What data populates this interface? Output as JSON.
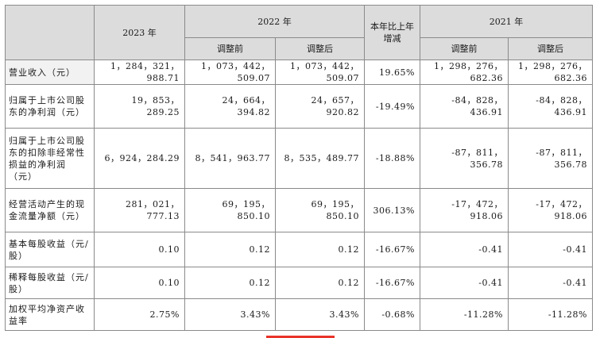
{
  "header": {
    "col_2023": "2023 年",
    "col_2022": "2022 年",
    "col_change": "本年比上年增减",
    "col_2021": "2021 年",
    "sub_before": "调整前",
    "sub_after": "调整后"
  },
  "rows": [
    {
      "label": "营业收入（元）",
      "v2023": "1，284，321，988.71",
      "v2022_before": "1，073，442，509.07",
      "v2022_after": "1，073，442，509.07",
      "change": "19.65%",
      "v2021_before": "1，298，276，682.36",
      "v2021_after": "1，298，276，682.36"
    },
    {
      "label": "归属于上市公司股东的净利润（元）",
      "v2023": "19，853，289.25",
      "v2022_before": "24，664，394.82",
      "v2022_after": "24，657，920.82",
      "change": "-19.49%",
      "v2021_before": "-84，828，436.91",
      "v2021_after": "-84，828，436.91"
    },
    {
      "label": "归属于上市公司股东的扣除非经常性损益的净利润（元）",
      "v2023": "6，924，284.29",
      "v2022_before": "8，541，963.77",
      "v2022_after": "8，535，489.77",
      "change": "-18.88%",
      "v2021_before": "-87，811，356.78",
      "v2021_after": "-87，811，356.78"
    },
    {
      "label": "经营活动产生的现金流量净额（元）",
      "v2023": "281，021，777.13",
      "v2022_before": "69，195，850.10",
      "v2022_after": "69，195，850.10",
      "change": "306.13%",
      "v2021_before": "-17，472，918.06",
      "v2021_after": "-17，472，918.06"
    },
    {
      "label": "基本每股收益（元/股）",
      "v2023": "0.10",
      "v2022_before": "0.12",
      "v2022_after": "0.12",
      "change": "-16.67%",
      "v2021_before": "-0.41",
      "v2021_after": "-0.41"
    },
    {
      "label": "稀释每股收益（元/股）",
      "v2023": "0.10",
      "v2022_before": "0.12",
      "v2022_after": "0.12",
      "change": "-16.67%",
      "v2021_before": "-0.41",
      "v2021_after": "-0.41"
    },
    {
      "label": "加权平均净资产收益率",
      "v2023": "2.75%",
      "v2022_before": "3.43%",
      "v2022_after": "3.43%",
      "change": "-0.68%",
      "v2021_before": "-11.28%",
      "v2021_after": "-11.28%"
    }
  ]
}
